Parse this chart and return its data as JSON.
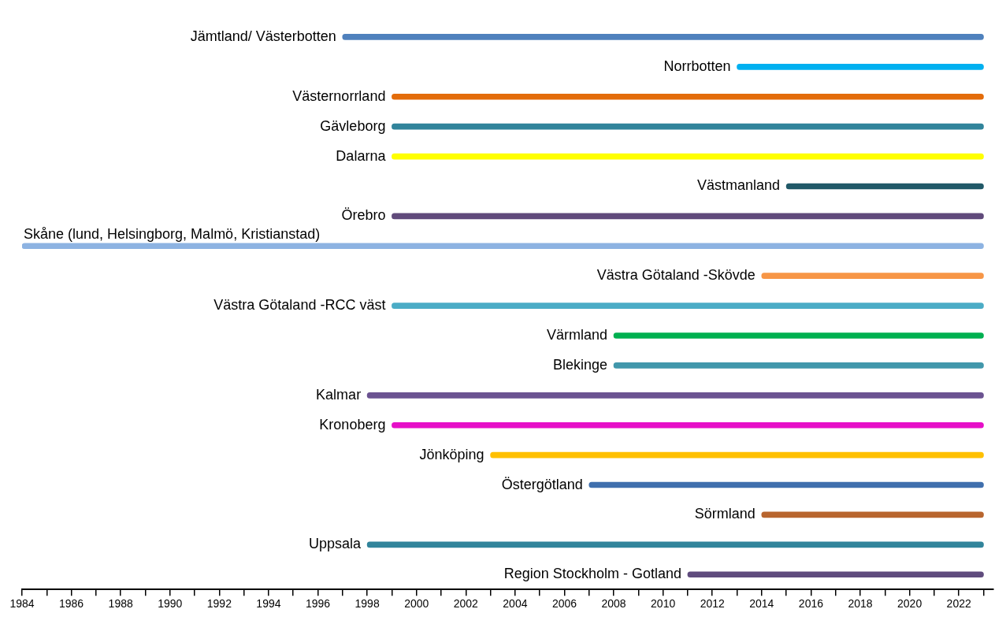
{
  "chart_data": {
    "type": "bar",
    "orientation": "horizontal",
    "categories": [
      "Jämtland/ Västerbotten",
      "Norrbotten",
      "Västernorrland",
      "Gävleborg",
      "Dalarna",
      "Västmanland",
      "Örebro",
      "Skåne (lund, Helsingborg, Malmö, Kristianstad)",
      "Västra Götaland -Skövde",
      "Västra Götaland -RCC väst",
      "Värmland",
      "Blekinge",
      "Kalmar",
      "Kronoberg",
      "Jönköping",
      "Östergötland",
      "Sörmland",
      "Uppsala",
      "Region Stockholm - Gotland"
    ],
    "base": [
      1997,
      2013,
      1999,
      1999,
      1999,
      2015,
      1999,
      1984,
      2014,
      1999,
      2008,
      2008,
      1998,
      1999,
      2003,
      2007,
      2014,
      1998,
      2011
    ],
    "values": [
      26,
      10,
      24,
      24,
      24,
      8,
      24,
      39,
      9,
      24,
      15,
      15,
      25,
      24,
      20,
      16,
      9,
      25,
      12
    ],
    "colors": [
      "#4f81bd",
      "#00b0f0",
      "#e36c0a",
      "#31849b",
      "#ffff00",
      "#215968",
      "#604a7b",
      "#8db3e2",
      "#f79646",
      "#4bacc6",
      "#00b050",
      "#4197ab",
      "#6b5391",
      "#e60fc8",
      "#ffc000",
      "#3f6fad",
      "#b8652e",
      "#31849b",
      "#5f4b7d"
    ],
    "xlim": [
      1984,
      2023.4
    ],
    "xticks": [
      1984,
      {
        "value": 1985,
        "label": null
      },
      1986,
      {
        "value": 1987,
        "label": null
      },
      1988,
      {
        "value": 1989,
        "label": null
      },
      1990,
      {
        "value": 1991,
        "label": null
      },
      1992,
      {
        "value": 1993,
        "label": null
      },
      1994,
      {
        "value": 1995,
        "label": null
      },
      1996,
      {
        "value": 1997,
        "label": null
      },
      1998,
      {
        "value": 1999,
        "label": null
      },
      2000,
      {
        "value": 2001,
        "label": null
      },
      2002,
      {
        "value": 2003,
        "label": null
      },
      2004,
      {
        "value": 2005,
        "label": null
      },
      2006,
      {
        "value": 2007,
        "label": null
      },
      2008,
      {
        "value": 2009,
        "label": null
      },
      2010,
      {
        "value": 2011,
        "label": null
      },
      2012,
      {
        "value": 2013,
        "label": null
      },
      2014,
      {
        "value": 2015,
        "label": null
      },
      2016,
      {
        "value": 2017,
        "label": null
      },
      2018,
      {
        "value": 2019,
        "label": null
      },
      2020,
      {
        "value": 2021,
        "label": null
      },
      2022,
      {
        "value": 2023,
        "label": null
      }
    ],
    "grid": false,
    "legend": false
  }
}
